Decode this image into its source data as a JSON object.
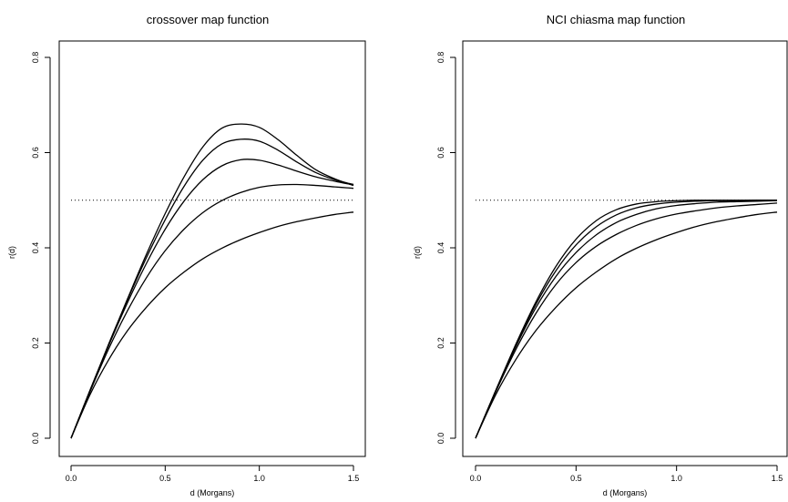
{
  "chart_data": [
    {
      "type": "line",
      "title": "crossover map function",
      "xlabel": "d (Morgans)",
      "ylabel": "r(d)",
      "xlim": [
        0,
        1.5
      ],
      "ylim": [
        0,
        0.8
      ],
      "xticks": [
        "0.0",
        "0.5",
        "1.0",
        "1.5"
      ],
      "yticks": [
        "0.0",
        "0.2",
        "0.4",
        "0.6",
        "0.8"
      ],
      "grid": false,
      "reference_line": {
        "y": 0.5,
        "style": "dotted"
      },
      "series": [
        {
          "x": [
            0,
            0.1,
            0.2,
            0.3,
            0.4,
            0.5,
            0.6,
            0.7,
            0.8,
            0.9,
            1.0,
            1.1,
            1.2,
            1.3,
            1.4,
            1.5
          ],
          "y": [
            0,
            0.091,
            0.165,
            0.226,
            0.275,
            0.316,
            0.349,
            0.377,
            0.399,
            0.417,
            0.432,
            0.445,
            0.455,
            0.463,
            0.47,
            0.475
          ]
        },
        {
          "x": [
            0,
            0.1,
            0.2,
            0.3,
            0.4,
            0.5,
            0.6,
            0.7,
            0.8,
            0.9,
            1.0,
            1.1,
            1.2,
            1.3,
            1.4,
            1.5
          ],
          "y": [
            0,
            0.097,
            0.188,
            0.268,
            0.337,
            0.394,
            0.439,
            0.474,
            0.499,
            0.516,
            0.527,
            0.532,
            0.533,
            0.531,
            0.528,
            0.525
          ]
        },
        {
          "x": [
            0,
            0.1,
            0.2,
            0.3,
            0.4,
            0.5,
            0.6,
            0.7,
            0.8,
            0.9,
            1.0,
            1.1,
            1.2,
            1.3,
            1.4,
            1.5
          ],
          "y": [
            0,
            0.099,
            0.195,
            0.285,
            0.367,
            0.439,
            0.498,
            0.543,
            0.572,
            0.585,
            0.584,
            0.574,
            0.561,
            0.549,
            0.54,
            0.532
          ]
        },
        {
          "x": [
            0,
            0.1,
            0.2,
            0.3,
            0.4,
            0.5,
            0.6,
            0.7,
            0.8,
            0.9,
            1.0,
            1.1,
            1.2,
            1.3,
            1.4,
            1.5
          ],
          "y": [
            0,
            0.1,
            0.197,
            0.291,
            0.379,
            0.459,
            0.529,
            0.584,
            0.618,
            0.628,
            0.624,
            0.605,
            0.58,
            0.558,
            0.543,
            0.533
          ]
        },
        {
          "x": [
            0,
            0.1,
            0.2,
            0.3,
            0.4,
            0.5,
            0.6,
            0.7,
            0.8,
            0.9,
            1.0,
            1.1,
            1.2,
            1.3,
            1.4,
            1.5
          ],
          "y": [
            0,
            0.1,
            0.198,
            0.293,
            0.386,
            0.472,
            0.549,
            0.612,
            0.651,
            0.66,
            0.653,
            0.627,
            0.594,
            0.564,
            0.545,
            0.531
          ]
        }
      ]
    },
    {
      "type": "line",
      "title": "NCI chiasma map function",
      "xlabel": "d (Morgans)",
      "ylabel": "r(d)",
      "xlim": [
        0,
        1.5
      ],
      "ylim": [
        0,
        0.8
      ],
      "xticks": [
        "0.0",
        "0.5",
        "1.0",
        "1.5"
      ],
      "yticks": [
        "0.0",
        "0.2",
        "0.4",
        "0.6",
        "0.8"
      ],
      "grid": false,
      "reference_line": {
        "y": 0.5,
        "style": "dotted"
      },
      "series": [
        {
          "x": [
            0,
            0.1,
            0.2,
            0.3,
            0.4,
            0.5,
            0.6,
            0.7,
            0.8,
            0.9,
            1.0,
            1.1,
            1.2,
            1.3,
            1.4,
            1.5
          ],
          "y": [
            0,
            0.091,
            0.165,
            0.226,
            0.275,
            0.316,
            0.349,
            0.377,
            0.399,
            0.417,
            0.432,
            0.445,
            0.455,
            0.463,
            0.47,
            0.475
          ]
        },
        {
          "x": [
            0,
            0.1,
            0.2,
            0.3,
            0.4,
            0.5,
            0.6,
            0.7,
            0.8,
            0.9,
            1.0,
            1.1,
            1.2,
            1.3,
            1.4,
            1.5
          ],
          "y": [
            0,
            0.097,
            0.186,
            0.262,
            0.323,
            0.369,
            0.403,
            0.428,
            0.447,
            0.461,
            0.471,
            0.478,
            0.484,
            0.488,
            0.491,
            0.494
          ]
        },
        {
          "x": [
            0,
            0.1,
            0.2,
            0.3,
            0.4,
            0.5,
            0.6,
            0.7,
            0.8,
            0.9,
            1.0,
            1.1,
            1.2,
            1.3,
            1.4,
            1.5
          ],
          "y": [
            0,
            0.099,
            0.192,
            0.274,
            0.34,
            0.39,
            0.427,
            0.453,
            0.47,
            0.482,
            0.489,
            0.493,
            0.496,
            0.497,
            0.498,
            0.499
          ]
        },
        {
          "x": [
            0,
            0.1,
            0.2,
            0.3,
            0.4,
            0.5,
            0.6,
            0.7,
            0.8,
            0.9,
            1.0,
            1.1,
            1.2,
            1.3,
            1.4,
            1.5
          ],
          "y": [
            0,
            0.099,
            0.195,
            0.281,
            0.352,
            0.406,
            0.444,
            0.469,
            0.484,
            0.492,
            0.496,
            0.498,
            0.499,
            0.499,
            0.5,
            0.5
          ]
        },
        {
          "x": [
            0,
            0.1,
            0.2,
            0.3,
            0.4,
            0.5,
            0.6,
            0.7,
            0.8,
            0.9,
            1.0,
            1.1,
            1.2,
            1.3,
            1.4,
            1.5
          ],
          "y": [
            0,
            0.1,
            0.197,
            0.286,
            0.361,
            0.418,
            0.457,
            0.48,
            0.492,
            0.497,
            0.499,
            0.5,
            0.5,
            0.5,
            0.5,
            0.5
          ]
        }
      ]
    }
  ]
}
